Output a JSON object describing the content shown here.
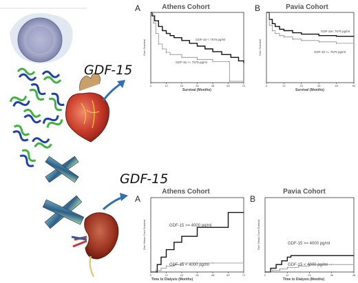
{
  "figure": {
    "gdf_label_top": "GDF-15",
    "gdf_label_bottom": "GDF-15"
  },
  "illustration": {
    "cell_icon": "cell-icon",
    "protein_icon": "protein-cluster-icon",
    "fiber_icon": "fiber-bundle-icon",
    "heart_icon": "heart-icon",
    "kidney_icon": "kidney-icon",
    "arrow_icon": "arrow-icon"
  },
  "colors": {
    "high_line": "#111111",
    "low_line": "#8a8a8a",
    "arrow": "#2f6fb3",
    "title_text": "#555555"
  },
  "chart_data": [
    {
      "type": "line",
      "panel": "A",
      "title": "Athens Cohort",
      "xlabel": "Survival (Months)",
      "ylabel": "Cum Survival",
      "x_ticks": [
        "0",
        "12",
        "24",
        "36",
        "48",
        "60",
        "72"
      ],
      "xlim": [
        0,
        72
      ],
      "ylim": [
        0,
        1
      ],
      "series": [
        {
          "name": "GDF-15 < 7575 pg/ml",
          "style": "thick",
          "points": [
            [
              0,
              1.0
            ],
            [
              1,
              0.95
            ],
            [
              3,
              0.88
            ],
            [
              6,
              0.8
            ],
            [
              9,
              0.74
            ],
            [
              12,
              0.7
            ],
            [
              15,
              0.67
            ],
            [
              18,
              0.64
            ],
            [
              24,
              0.6
            ],
            [
              30,
              0.56
            ],
            [
              36,
              0.52
            ],
            [
              42,
              0.48
            ],
            [
              48,
              0.44
            ],
            [
              55,
              0.4
            ],
            [
              62,
              0.36
            ],
            [
              68,
              0.31
            ],
            [
              72,
              0.28
            ]
          ]
        },
        {
          "name": "GDF-15 >= 7575 pg/ml",
          "style": "thin",
          "points": [
            [
              0,
              1.0
            ],
            [
              2,
              0.85
            ],
            [
              4,
              0.7
            ],
            [
              6,
              0.55
            ],
            [
              9,
              0.48
            ],
            [
              12,
              0.43
            ],
            [
              15,
              0.4
            ],
            [
              24,
              0.36
            ],
            [
              36,
              0.33
            ],
            [
              48,
              0.3
            ],
            [
              60,
              0.3
            ],
            [
              61,
              0.02
            ],
            [
              72,
              0.02
            ]
          ]
        }
      ]
    },
    {
      "type": "line",
      "panel": "B",
      "title": "Pavia Cohort",
      "xlabel": "Survival (Months)",
      "ylabel": "Cum Survival",
      "x_ticks": [
        "0",
        "12",
        "24",
        "36",
        "48",
        "60"
      ],
      "xlim": [
        0,
        60
      ],
      "ylim": [
        0,
        1
      ],
      "series": [
        {
          "name": "GDF-15< 7575 pg/ml",
          "style": "thick",
          "points": [
            [
              0,
              1.0
            ],
            [
              2,
              0.9
            ],
            [
              4,
              0.84
            ],
            [
              6,
              0.8
            ],
            [
              9,
              0.76
            ],
            [
              12,
              0.74
            ],
            [
              18,
              0.71
            ],
            [
              24,
              0.69
            ],
            [
              36,
              0.67
            ],
            [
              48,
              0.66
            ],
            [
              60,
              0.66
            ]
          ]
        },
        {
          "name": "GDF-15 >= 7575 pg/ml",
          "style": "thin",
          "points": [
            [
              0,
              1.0
            ],
            [
              2,
              0.82
            ],
            [
              4,
              0.74
            ],
            [
              6,
              0.7
            ],
            [
              9,
              0.67
            ],
            [
              12,
              0.65
            ],
            [
              18,
              0.62
            ],
            [
              24,
              0.6
            ],
            [
              36,
              0.58
            ],
            [
              48,
              0.56
            ],
            [
              60,
              0.56
            ]
          ]
        }
      ]
    },
    {
      "type": "line",
      "panel": "A",
      "title": "Athens Cohort",
      "xlabel": "Time to Dialysis (Months)",
      "ylabel": "One Minus Cum Survival",
      "x_ticks": [
        "0",
        "12",
        "24",
        "36",
        "48",
        "60",
        "72"
      ],
      "xlim": [
        0,
        72
      ],
      "ylim": [
        0,
        1
      ],
      "series": [
        {
          "name": "GDF-15 >= 4000 pg/ml",
          "style": "thick",
          "points": [
            [
              0,
              0.0
            ],
            [
              3,
              0.0
            ],
            [
              5,
              0.1
            ],
            [
              8,
              0.2
            ],
            [
              12,
              0.3
            ],
            [
              18,
              0.4
            ],
            [
              24,
              0.48
            ],
            [
              36,
              0.6
            ],
            [
              48,
              0.6
            ],
            [
              58,
              0.6
            ],
            [
              60,
              0.8
            ],
            [
              72,
              0.8
            ]
          ]
        },
        {
          "name": "GDF-15 < 4000 pg/ml",
          "style": "thin",
          "points": [
            [
              0,
              0.0
            ],
            [
              4,
              0.02
            ],
            [
              8,
              0.05
            ],
            [
              12,
              0.08
            ],
            [
              18,
              0.1
            ],
            [
              24,
              0.12
            ],
            [
              36,
              0.12
            ],
            [
              48,
              0.12
            ],
            [
              72,
              0.12
            ]
          ]
        }
      ]
    },
    {
      "type": "line",
      "panel": "B",
      "title": "Pavia Cohort",
      "xlabel": "Time to Dialysis (Months)",
      "ylabel": "One Minus Cum Survival",
      "x_ticks": [
        "0",
        "12",
        "24",
        "36",
        "48"
      ],
      "xlim": [
        0,
        48
      ],
      "ylim": [
        0,
        1
      ],
      "series": [
        {
          "name": "GDF-15 >= 4000 pg/ml",
          "style": "thick",
          "points": [
            [
              0,
              0.0
            ],
            [
              3,
              0.05
            ],
            [
              6,
              0.1
            ],
            [
              9,
              0.15
            ],
            [
              12,
              0.2
            ],
            [
              14,
              0.22
            ],
            [
              48,
              0.22
            ]
          ]
        },
        {
          "name": "GDF-15 < 4000 pg/ml",
          "style": "thin",
          "points": [
            [
              0,
              0.0
            ],
            [
              4,
              0.02
            ],
            [
              8,
              0.04
            ],
            [
              12,
              0.06
            ],
            [
              18,
              0.08
            ],
            [
              24,
              0.1
            ],
            [
              36,
              0.1
            ],
            [
              48,
              0.1
            ]
          ]
        }
      ]
    }
  ]
}
